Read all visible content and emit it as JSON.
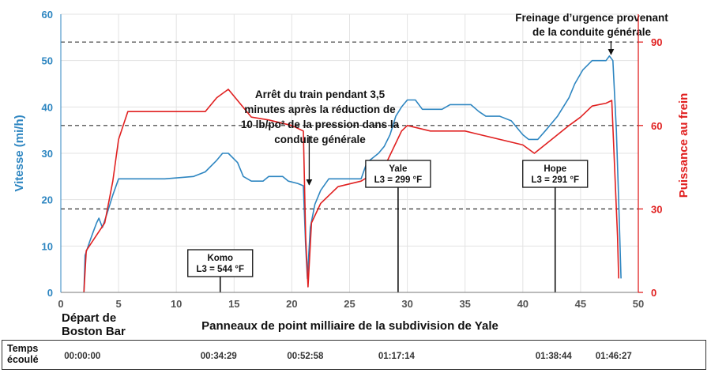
{
  "chart_data": {
    "type": "line",
    "xlabel": "Panneaux de point milliaire de la subdivision de Yale",
    "ylabel_left": "Vitesse (mi/h)",
    "ylabel_right": "Puissance au frein",
    "xlim": [
      0,
      50
    ],
    "ylim_left": [
      0,
      60
    ],
    "ylim_right": [
      0,
      100
    ],
    "x_ticks": [
      "0",
      "5",
      "10",
      "15",
      "20",
      "25",
      "30",
      "35",
      "40",
      "45",
      "50"
    ],
    "y_left_ticks": [
      "0",
      "10",
      "20",
      "30",
      "40",
      "50",
      "60"
    ],
    "y_right_ticks": [
      "0",
      "30",
      "60",
      "90"
    ],
    "grid": true,
    "reference_lines_right": [
      30,
      60,
      90
    ],
    "colors": {
      "speed": "#2e86c1",
      "brake": "#e02020",
      "left_axis": "#2e86c1",
      "right_axis": "#e02020"
    },
    "series": [
      {
        "axis": "left",
        "values": [
          [
            2,
            0
          ],
          [
            2.1,
            8
          ],
          [
            2.5,
            11
          ],
          [
            2.8,
            13
          ],
          [
            3.1,
            15
          ],
          [
            3.3,
            16
          ],
          [
            3.6,
            14
          ],
          [
            4,
            17
          ],
          [
            4.5,
            21
          ],
          [
            5,
            24.5
          ],
          [
            9,
            24.5
          ],
          [
            11.5,
            25
          ],
          [
            12.5,
            26
          ],
          [
            13.5,
            28.5
          ],
          [
            14,
            30
          ],
          [
            14.5,
            30
          ],
          [
            15.3,
            28
          ],
          [
            15.8,
            25
          ],
          [
            16.5,
            24
          ],
          [
            17.5,
            24
          ],
          [
            18,
            25
          ],
          [
            19.2,
            25
          ],
          [
            19.7,
            24
          ],
          [
            20.5,
            23.5
          ],
          [
            21,
            23
          ],
          [
            21.2,
            10
          ],
          [
            21.35,
            3
          ],
          [
            21.6,
            14
          ],
          [
            22,
            19
          ],
          [
            22.5,
            22
          ],
          [
            23.2,
            24.5
          ],
          [
            26,
            24.5
          ],
          [
            26.5,
            28
          ],
          [
            27.5,
            30
          ],
          [
            28,
            31.5
          ],
          [
            28.5,
            34
          ],
          [
            29,
            38
          ],
          [
            29.5,
            40
          ],
          [
            30,
            41.5
          ],
          [
            30.7,
            41.5
          ],
          [
            31.3,
            39.5
          ],
          [
            33,
            39.5
          ],
          [
            33.7,
            40.5
          ],
          [
            35.5,
            40.5
          ],
          [
            36.2,
            39
          ],
          [
            36.8,
            38
          ],
          [
            38,
            38
          ],
          [
            39,
            37
          ],
          [
            40,
            34
          ],
          [
            40.5,
            33
          ],
          [
            41.3,
            33
          ],
          [
            42,
            35
          ],
          [
            43,
            38
          ],
          [
            44,
            42
          ],
          [
            44.5,
            45
          ],
          [
            45.2,
            48
          ],
          [
            46,
            50
          ],
          [
            47.2,
            50
          ],
          [
            47.5,
            51
          ],
          [
            47.8,
            50
          ],
          [
            48.1,
            35
          ],
          [
            48.3,
            20
          ],
          [
            48.5,
            3
          ]
        ]
      },
      {
        "axis": "right",
        "values": [
          [
            2,
            0
          ],
          [
            2.2,
            15
          ],
          [
            3,
            20
          ],
          [
            3.8,
            25
          ],
          [
            4.5,
            40
          ],
          [
            5,
            55
          ],
          [
            5.8,
            65
          ],
          [
            12.5,
            65
          ],
          [
            13.5,
            70
          ],
          [
            14.5,
            73
          ],
          [
            15.5,
            68
          ],
          [
            16.5,
            63
          ],
          [
            18,
            62
          ],
          [
            20,
            60
          ],
          [
            21,
            58
          ],
          [
            21.2,
            20
          ],
          [
            21.4,
            2
          ],
          [
            21.7,
            25
          ],
          [
            22.5,
            32
          ],
          [
            24,
            38
          ],
          [
            26,
            40
          ],
          [
            28,
            45
          ],
          [
            29.5,
            58
          ],
          [
            30,
            60
          ],
          [
            32,
            58
          ],
          [
            35,
            58
          ],
          [
            36,
            57
          ],
          [
            40,
            53
          ],
          [
            41,
            50
          ],
          [
            42.5,
            55
          ],
          [
            44,
            60
          ],
          [
            45,
            63
          ],
          [
            46,
            67
          ],
          [
            47.2,
            68
          ],
          [
            47.7,
            69
          ],
          [
            48.2,
            20
          ],
          [
            48.3,
            5
          ]
        ]
      }
    ],
    "annotations": [
      {
        "x": 21.3,
        "lines": [
          "Arrêt du train pendant 3,5",
          "minutes après la réduction de",
          "10 lb/po² de la pression dans la",
          "conduite générale"
        ]
      },
      {
        "x": 47.5,
        "lines": [
          "Freinage d’urgence provenant",
          "de la conduite générale"
        ]
      }
    ],
    "temperature_boxes": [
      {
        "name": "Komo",
        "value": "L3 = 544 °F",
        "x": 13.8
      },
      {
        "name": "Yale",
        "value": "L3 = 299 °F",
        "x": 29.2
      },
      {
        "name": "Hope",
        "value": "L3 = 291 °F",
        "x": 42.8
      }
    ],
    "start_label": [
      "Départ de",
      "Boston Bar"
    ],
    "elapsed": {
      "label": [
        "Temps",
        "écoulé"
      ],
      "values": [
        {
          "time": "00:00:00",
          "x": 2
        },
        {
          "time": "00:34:29",
          "x": 13.8
        },
        {
          "time": "00:52:58",
          "x": 21.3
        },
        {
          "time": "01:17:14",
          "x": 29.2
        },
        {
          "time": "01:38:44",
          "x": 42.8
        },
        {
          "time": "01:46:27",
          "x": 48
        }
      ]
    }
  }
}
